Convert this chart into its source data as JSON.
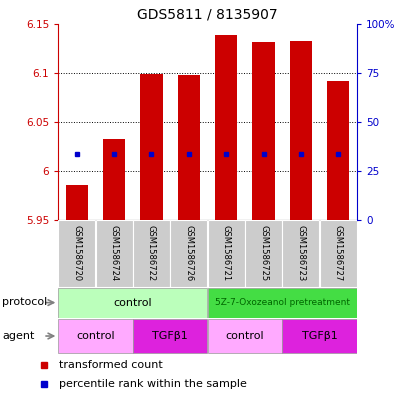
{
  "title": "GDS5811 / 8135907",
  "samples": [
    "GSM1586720",
    "GSM1586724",
    "GSM1586722",
    "GSM1586726",
    "GSM1586721",
    "GSM1586725",
    "GSM1586723",
    "GSM1586727"
  ],
  "transformed_count": [
    5.986,
    6.033,
    6.099,
    6.098,
    6.138,
    6.131,
    6.132,
    6.092
  ],
  "bar_bottom": 5.95,
  "ylim_left": [
    5.95,
    6.15
  ],
  "ylim_right": [
    0,
    100
  ],
  "yticks_left": [
    5.95,
    6.0,
    6.05,
    6.1,
    6.15
  ],
  "yticks_left_labels": [
    "5.95",
    "6",
    "6.05",
    "6.1",
    "6.15"
  ],
  "yticks_right": [
    0,
    25,
    50,
    75,
    100
  ],
  "yticks_right_labels": [
    "0",
    "25",
    "50",
    "75",
    "100%"
  ],
  "bar_color": "#cc0000",
  "dot_color": "#0000cc",
  "bar_width": 0.6,
  "percentile_dots": [
    6.017,
    6.017,
    6.017,
    6.017,
    6.017,
    6.017,
    6.017,
    6.017
  ],
  "protocol_colors": [
    "#bbffbb",
    "#44dd44"
  ],
  "agent_colors_list": [
    "#ffaaff",
    "#dd22dd",
    "#ffaaff",
    "#dd22dd"
  ],
  "gray_sample": "#cccccc",
  "left_axis_color": "#cc0000",
  "right_axis_color": "#0000cc"
}
